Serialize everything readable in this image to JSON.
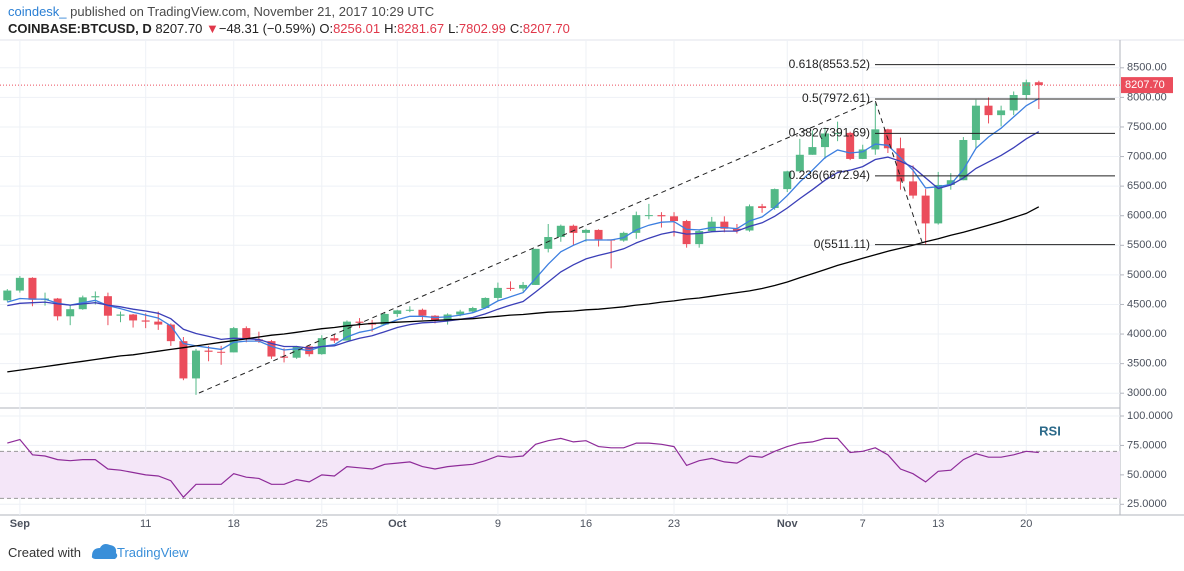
{
  "header": {
    "publisher": "coindesk_",
    "published": "published on TradingView.com, November 21, 2017 10:29 UTC",
    "symbol": "COINBASE:BTCUSD, D",
    "last": "8207.70",
    "arrow": "▼",
    "change": "−48.31 (−0.59%)",
    "o_label": "O:",
    "o": "8256.01",
    "h_label": "H:",
    "h": "8281.67",
    "l_label": "L:",
    "l": "7802.99",
    "c_label": "C:",
    "c": "8207.70"
  },
  "chart_data": [
    {
      "type": "candlestick",
      "categories": [
        null,
        "Sep",
        null,
        null,
        null,
        null,
        null,
        null,
        null,
        null,
        null,
        "11",
        null,
        null,
        null,
        null,
        null,
        null,
        "18",
        null,
        null,
        null,
        null,
        null,
        null,
        "25",
        null,
        null,
        null,
        null,
        null,
        "Oct",
        null,
        null,
        null,
        null,
        null,
        null,
        null,
        "9",
        null,
        null,
        null,
        null,
        null,
        null,
        "16",
        null,
        null,
        null,
        null,
        null,
        null,
        "23",
        null,
        null,
        null,
        null,
        null,
        null,
        null,
        null,
        "Nov",
        null,
        null,
        null,
        null,
        null,
        "7",
        null,
        null,
        null,
        null,
        null,
        "13",
        null,
        null,
        null,
        null,
        null,
        null,
        "20",
        null
      ],
      "open": [
        4570,
        4735,
        4950,
        4580,
        4600,
        4300,
        4420,
        4620,
        4640,
        4310,
        4330,
        4230,
        4210,
        4160,
        3880,
        3250,
        3720,
        3700,
        3690,
        4100,
        3910,
        3880,
        3620,
        3600,
        3790,
        3660,
        3930,
        3890,
        4210,
        4190,
        4160,
        4340,
        4400,
        4410,
        4310,
        4230,
        4330,
        4380,
        4440,
        4610,
        4780,
        4770,
        4830,
        5440,
        5640,
        5830,
        5710,
        5760,
        5600,
        5580,
        5710,
        6010,
        6010,
        5990,
        5910,
        5520,
        5740,
        5900,
        5780,
        5750,
        6160,
        6130,
        6450,
        6750,
        7030,
        7160,
        7390,
        7400,
        6960,
        7120,
        7460,
        7140,
        6580,
        6340,
        5870,
        6520,
        6600,
        7280,
        7860,
        7700,
        7780,
        8040,
        8256.01
      ],
      "high": [
        4760,
        4980,
        4960,
        4700,
        4610,
        4490,
        4650,
        4720,
        4700,
        4380,
        4340,
        4350,
        4380,
        4180,
        3950,
        3750,
        3800,
        3800,
        4120,
        4130,
        4040,
        3900,
        3760,
        3800,
        3800,
        3980,
        4000,
        4230,
        4270,
        4240,
        4360,
        4410,
        4470,
        4430,
        4320,
        4350,
        4410,
        4460,
        4620,
        4870,
        4890,
        4880,
        5440,
        5860,
        5850,
        5850,
        5780,
        5770,
        5600,
        5730,
        6070,
        6200,
        6060,
        6060,
        5930,
        5750,
        5980,
        5990,
        5860,
        6190,
        6200,
        6460,
        6760,
        7300,
        7440,
        7490,
        7590,
        7420,
        7200,
        7900,
        7470,
        7320,
        6850,
        6450,
        6740,
        6720,
        7330,
        7960,
        8000,
        7860,
        8100,
        8300,
        8281.67
      ],
      "low": [
        4550,
        4700,
        4470,
        4480,
        4230,
        4150,
        4410,
        4500,
        4150,
        4200,
        4110,
        4100,
        4070,
        3800,
        3220,
        2972,
        3540,
        3480,
        3690,
        3860,
        3850,
        3580,
        3520,
        3580,
        3620,
        3650,
        3850,
        3890,
        4100,
        4040,
        4150,
        4290,
        4370,
        4240,
        4180,
        4160,
        4300,
        4360,
        4430,
        4560,
        4730,
        4720,
        4830,
        5380,
        5560,
        5500,
        5560,
        5480,
        5110,
        5560,
        5610,
        5940,
        5800,
        5650,
        5460,
        5460,
        5720,
        5720,
        5700,
        5730,
        6050,
        6100,
        6400,
        6750,
        7030,
        6960,
        7260,
        6940,
        6960,
        7030,
        7060,
        6440,
        6290,
        5511,
        5850,
        6440,
        6600,
        7130,
        7560,
        7510,
        7700,
        7960,
        7802.99
      ],
      "close": [
        4735,
        4950,
        4580,
        4600,
        4300,
        4420,
        4620,
        4640,
        4310,
        4330,
        4230,
        4210,
        4160,
        3880,
        3250,
        3720,
        3700,
        3690,
        4100,
        3910,
        3880,
        3620,
        3600,
        3790,
        3660,
        3930,
        3890,
        4210,
        4190,
        4160,
        4340,
        4400,
        4410,
        4310,
        4230,
        4330,
        4380,
        4440,
        4610,
        4780,
        4770,
        4830,
        5440,
        5640,
        5830,
        5710,
        5760,
        5600,
        5580,
        5710,
        6010,
        6010,
        5990,
        5910,
        5520,
        5740,
        5900,
        5780,
        5750,
        6160,
        6130,
        6450,
        6750,
        7030,
        7160,
        7390,
        7400,
        6960,
        7120,
        7460,
        7140,
        6580,
        6340,
        5870,
        6520,
        6600,
        7280,
        7860,
        7700,
        7780,
        8040,
        8256.01,
        8207.7
      ],
      "up_color": "#53b987",
      "down_color": "#eb4d5c",
      "moving_averages": [
        {
          "color": "#3d7fe0",
          "values": [
            4540,
            4600,
            4590,
            4590,
            4520,
            4490,
            4530,
            4570,
            4480,
            4430,
            4370,
            4320,
            4270,
            4140,
            3840,
            3800,
            3770,
            3740,
            3860,
            3880,
            3880,
            3790,
            3730,
            3750,
            3720,
            3790,
            3820,
            3950,
            4030,
            4070,
            4160,
            4240,
            4300,
            4300,
            4280,
            4290,
            4320,
            4360,
            4440,
            4560,
            4630,
            4700,
            4940,
            5180,
            5390,
            5500,
            5590,
            5590,
            5590,
            5630,
            5760,
            5840,
            5890,
            5900,
            5770,
            5760,
            5800,
            5800,
            5780,
            5910,
            5980,
            6140,
            6340,
            6570,
            6770,
            6980,
            7110,
            7060,
            7080,
            7210,
            7190,
            6980,
            6770,
            6470,
            6490,
            6530,
            6780,
            7140,
            7330,
            7480,
            7670,
            7860,
            7980
          ]
        },
        {
          "color": "#3b3fb8",
          "values": [
            4480,
            4520,
            4530,
            4540,
            4510,
            4490,
            4510,
            4530,
            4490,
            4460,
            4420,
            4390,
            4350,
            4260,
            4080,
            4010,
            3960,
            3910,
            3930,
            3920,
            3910,
            3840,
            3790,
            3790,
            3760,
            3790,
            3800,
            3870,
            3930,
            3970,
            4040,
            4110,
            4160,
            4190,
            4200,
            4220,
            4250,
            4280,
            4340,
            4420,
            4490,
            4550,
            4710,
            4880,
            5050,
            5170,
            5270,
            5330,
            5380,
            5440,
            5540,
            5620,
            5690,
            5730,
            5690,
            5700,
            5730,
            5740,
            5740,
            5820,
            5880,
            5990,
            6130,
            6290,
            6440,
            6600,
            6730,
            6770,
            6830,
            6950,
            6990,
            6920,
            6820,
            6640,
            6460,
            6520,
            6640,
            6800,
            6910,
            7020,
            7150,
            7300,
            7420
          ]
        },
        {
          "color": "#000000",
          "values": [
            3360,
            3390,
            3420,
            3450,
            3480,
            3510,
            3540,
            3570,
            3600,
            3630,
            3650,
            3680,
            3710,
            3740,
            3770,
            3800,
            3830,
            3860,
            3890,
            3920,
            3950,
            3980,
            4000,
            4030,
            4060,
            4090,
            4110,
            4140,
            4160,
            4180,
            4190,
            4200,
            4210,
            4220,
            4230,
            4240,
            4250,
            4260,
            4280,
            4300,
            4320,
            4330,
            4350,
            4370,
            4380,
            4390,
            4410,
            4420,
            4440,
            4460,
            4490,
            4510,
            4540,
            4560,
            4590,
            4610,
            4640,
            4670,
            4700,
            4730,
            4770,
            4820,
            4880,
            4950,
            5020,
            5090,
            5160,
            5220,
            5280,
            5340,
            5400,
            5450,
            5500,
            5560,
            5610,
            5670,
            5720,
            5780,
            5840,
            5900,
            5970,
            6040,
            6150
          ]
        }
      ],
      "fib_levels": [
        {
          "value": 8553.52,
          "label": "0.618(8553.52)"
        },
        {
          "value": 7972.61,
          "label": "0.5(7972.61)"
        },
        {
          "value": 7391.69,
          "label": "0.382(7391.69)"
        },
        {
          "value": 6672.94,
          "label": "0.236(6672.94)"
        },
        {
          "value": 5511.11,
          "label": "0(5511.11)"
        }
      ],
      "ylim": [
        2750,
        8970
      ],
      "yticks": [
        {
          "value": 3000,
          "label": "3000.00"
        },
        {
          "value": 3500,
          "label": "3500.00"
        },
        {
          "value": 4000,
          "label": "4000.00"
        },
        {
          "value": 4500,
          "label": "4500.00"
        },
        {
          "value": 5000,
          "label": "5000.00"
        },
        {
          "value": 5500,
          "label": "5500.00"
        },
        {
          "value": 6000,
          "label": "6000.00"
        },
        {
          "value": 6500,
          "label": "6500.00"
        },
        {
          "value": 7000,
          "label": "7000.00"
        },
        {
          "value": 7500,
          "label": "7500.00"
        },
        {
          "value": 8000,
          "label": "8000.00"
        },
        {
          "value": 8500,
          "label": "8500.00"
        }
      ],
      "grid": true
    },
    {
      "type": "line",
      "title": "RSI",
      "color": "#8e2b99",
      "values": [
        77,
        80,
        67,
        66,
        63,
        62,
        63,
        63,
        55,
        54,
        52,
        50,
        49,
        45,
        31,
        42,
        42,
        42,
        51,
        48,
        47,
        42,
        42,
        46,
        44,
        50,
        49,
        57,
        56,
        55,
        59,
        60,
        61,
        57,
        55,
        57,
        58,
        59,
        62,
        66,
        65,
        66,
        76,
        79,
        81,
        78,
        79,
        74,
        73,
        73,
        77,
        77,
        76,
        74,
        58,
        62,
        64,
        61,
        60,
        66,
        65,
        70,
        74,
        77,
        78,
        81,
        81,
        69,
        70,
        73,
        67,
        55,
        51,
        44,
        53,
        54,
        63,
        68,
        65,
        65,
        67,
        70,
        69
      ],
      "levels": [
        70,
        30
      ],
      "band_color": "#f4e6f8",
      "ylim": [
        15.9,
        106.8
      ],
      "yticks": [
        {
          "value": 25,
          "label": "25.0000"
        },
        {
          "value": 50,
          "label": "50.0000"
        },
        {
          "value": 75,
          "label": "75.0000"
        },
        {
          "value": 100,
          "label": "100.0000"
        }
      ],
      "grid": true
    }
  ],
  "footer": {
    "created": "Created with",
    "brand": "TradingView"
  }
}
